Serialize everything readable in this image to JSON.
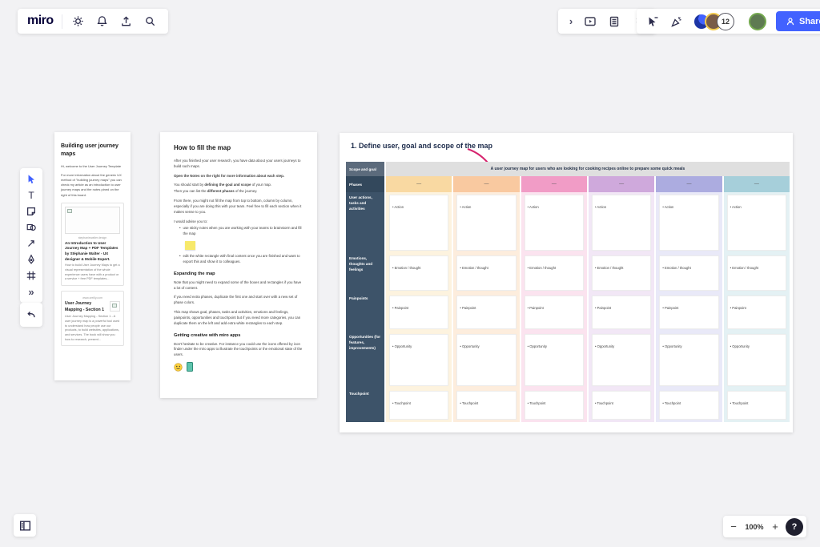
{
  "colors": {
    "accent": "#4262FF",
    "annotation": "#D6246E",
    "table_label_bg": "#3D5369",
    "banner_bg": "#DFDFDF"
  },
  "icons": {
    "chevron_right": "›",
    "more": "»",
    "text_tool": "T",
    "minus": "−",
    "plus": "+",
    "help": "?"
  },
  "topbar": {
    "logo": "miro"
  },
  "collab": {
    "count": "12",
    "share_label": "Share"
  },
  "zoombar": {
    "level": "100%"
  },
  "doc1": {
    "title": "Building user journey maps",
    "p1": "Hi, welcome to the User Journey Template",
    "p2": "For more information about the generic UX method of \"building journey maps\" you can check my article as an introduction to user journey maps and the notes pined on the right of this board.",
    "card1": {
      "domain": "stephaniewalter.design",
      "title": "An Introduction to User Journey Map + PDF Templates by Stéphanie Walter - UX designer & Mobile Expert.",
      "body": "How to build User Journey Maps to get a visual representation of the whole experience users have with a product or a service + free PDF templates..."
    },
    "card2": {
      "domain": "www.oreilly.com",
      "title": "User Journey Mapping - Section 1",
      "body": "User Journey Mapping - Section 1 - A user journey map is a powerful tool used to understand how people use our products, to build websites, applications, and services. The book will show you how to research, present..."
    }
  },
  "doc2": {
    "title": "How to fill the map",
    "p1": "After you finished your user research, you have data about your users journeys to build such maps.",
    "note": "Open the Notes on the right for more information about each step.",
    "p2a": "You should start by ",
    "p2b": "defining the goal and scope",
    "p2c": " of your map.",
    "p3a": "Then you can list the ",
    "p3b": "different phases",
    "p3c": " of the journey.",
    "p4": "From there, you might not fill the map from top to bottom, column by column, especially if you are doing this with your team. Feel free to fill each section when it makes sense to you.",
    "p5": "I would advise you to:",
    "b1": "use sticky notes when you are working with your teams to brainstorm and fill the map",
    "b2": "edit the white rectangle with final content once you are finished and want to export this and show it to colleagues.",
    "h2": "Expanding the map",
    "p6": "Note that you might need to expand some of the boxes and rectangles if you have a lot of content.",
    "p7": "If you need extra phases, duplicate the first one and start over with a new set of phase colors.",
    "p8": "This map shows goal, phases, tasks and activities, emotions and feelings, painpoints, opportunities and touchpoint but if you need more categories, you can duplicate them on the left and add extra white rectangles to each step.",
    "h3": "Getting creative with miro apps",
    "p9": "Don't hesitate to be creative. For instance you could use the icons offered by icon finder under the miro apps to illustrate the touchpoints or the emotional state of the users."
  },
  "journey": {
    "title": "1. Define user, goal and scope of the map",
    "scope_label": "Scope and goal",
    "scope_text": "A user journey map for users who are looking for cooking recipes online to prepare some quick meals",
    "phases_label": "Phases",
    "dash": "—",
    "phases": [
      {
        "color": "#F9D9A2",
        "tint": "#FDF3DF"
      },
      {
        "color": "#F9C9A0",
        "tint": "#FDEDDD"
      },
      {
        "color": "#F19CC6",
        "tint": "#FBE3EF"
      },
      {
        "color": "#CFA9DC",
        "tint": "#F2E7F6"
      },
      {
        "color": "#ACACE0",
        "tint": "#E9E9F8"
      },
      {
        "color": "#A6CFDA",
        "tint": "#E4F1F4"
      }
    ],
    "rows": [
      {
        "label": "User actions, tasks and activities",
        "item": "Action"
      },
      {
        "label": "Emotions, thoughts and feelings",
        "item": "Emotion / thought"
      },
      {
        "label": "Painpoints",
        "item": "Painpoint"
      },
      {
        "label": "Opportunities (for features, improvements)",
        "item": "Opportunity"
      },
      {
        "label": "Touchpoint",
        "item": "Touchpoint"
      }
    ]
  }
}
